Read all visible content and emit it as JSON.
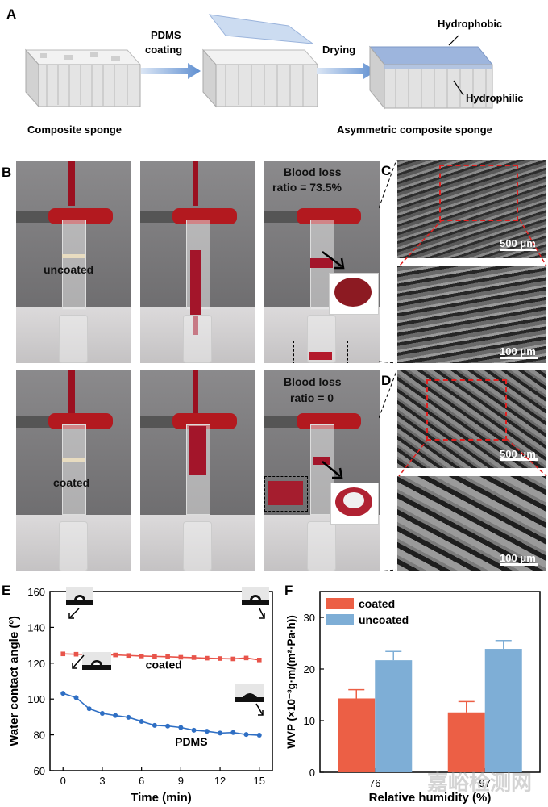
{
  "panel_a": {
    "letter": "A",
    "arrow1_label_line1": "PDMS",
    "arrow1_label_line2": "coating",
    "arrow2_label": "Drying",
    "hydrophobic": "Hydrophobic",
    "hydrophilic": "Hydrophilic",
    "caption_left": "Composite sponge",
    "caption_right": "Asymmetric composite sponge"
  },
  "panel_b": {
    "letter": "B",
    "uncoated": "uncoated",
    "coated": "coated",
    "loss_top_line1": "Blood loss",
    "loss_top_line2": "ratio = 73.5%",
    "loss_bottom_line1": "Blood loss",
    "loss_bottom_line2": "ratio = 0"
  },
  "panel_c": {
    "letter": "C",
    "scale_top": "500 μm",
    "scale_bottom": "100 μm"
  },
  "panel_d": {
    "letter": "D",
    "scale_top": "500 μm",
    "scale_bottom": "100 μm"
  },
  "watermark": "嘉峪检测网",
  "chart_data": [
    {
      "panel": "E",
      "type": "line",
      "xlabel": "Time (min)",
      "ylabel": "Water contact angle (º)",
      "xlim": [
        -1,
        16
      ],
      "ylim": [
        60,
        160
      ],
      "xticks": [
        0,
        3,
        6,
        9,
        12,
        15
      ],
      "yticks": [
        60,
        80,
        100,
        120,
        140,
        160
      ],
      "x": [
        0,
        1,
        2,
        3,
        4,
        5,
        6,
        7,
        8,
        9,
        10,
        11,
        12,
        13,
        14,
        15
      ],
      "series": [
        {
          "name": "coated",
          "color": "#e8544a",
          "marker": "square",
          "values": [
            125.2,
            125.0,
            124.9,
            124.8,
            124.6,
            124.3,
            124.0,
            123.8,
            123.6,
            123.3,
            123.1,
            122.8,
            122.6,
            122.4,
            122.9,
            121.8
          ]
        },
        {
          "name": "PDMS",
          "color": "#2f6fc4",
          "marker": "circle",
          "values": [
            103.2,
            100.8,
            94.6,
            92.0,
            90.8,
            89.8,
            87.5,
            85.3,
            84.9,
            84.1,
            82.6,
            82.0,
            81.0,
            81.3,
            80.2,
            79.8
          ]
        }
      ]
    },
    {
      "panel": "F",
      "type": "bar",
      "xlabel": "Relative humidity (%)",
      "ylabel": "WVP (×10⁻³g·m/(m²·Pa·h))",
      "categories": [
        "76",
        "97"
      ],
      "ylim": [
        0,
        35
      ],
      "yticks": [
        0,
        10,
        20,
        30
      ],
      "legend": "top-left",
      "series": [
        {
          "name": "coated",
          "color": "#ec5f45",
          "values": [
            14.3,
            11.6
          ],
          "errors": [
            1.7,
            2.1
          ]
        },
        {
          "name": "uncoated",
          "color": "#7eaed6",
          "values": [
            21.7,
            23.9
          ],
          "errors": [
            1.7,
            1.6
          ]
        }
      ]
    }
  ]
}
